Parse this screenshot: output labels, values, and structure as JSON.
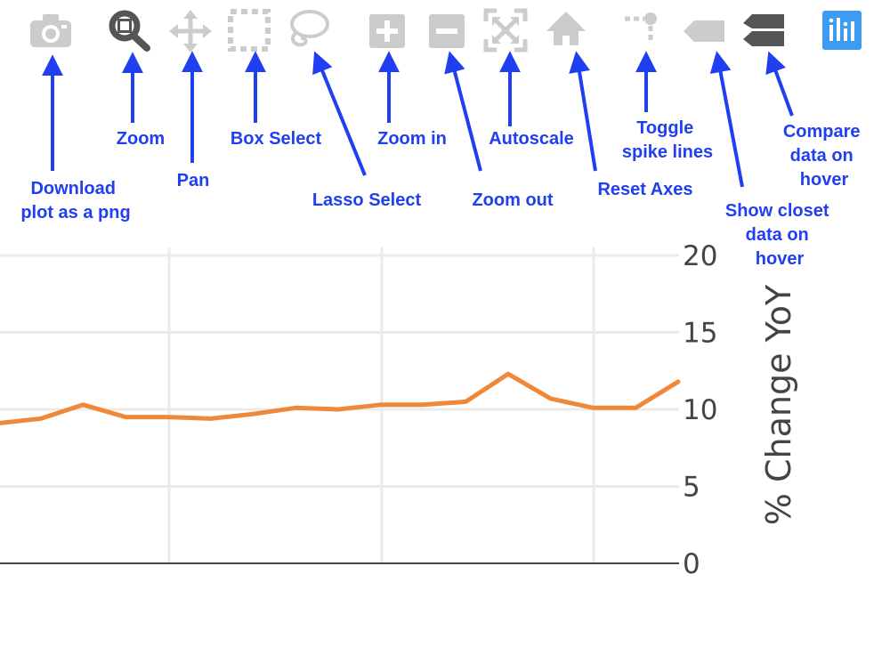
{
  "toolbar": {
    "buttons": [
      {
        "key": "download",
        "icon": "camera-icon",
        "label_lines": [
          "Download",
          "plot as a png"
        ]
      },
      {
        "key": "zoom",
        "icon": "magnifier-icon",
        "label_lines": [
          "Zoom"
        ]
      },
      {
        "key": "pan",
        "icon": "move-arrows-icon",
        "label_lines": [
          "Pan"
        ]
      },
      {
        "key": "box-select",
        "icon": "dashed-box-icon",
        "label_lines": [
          "Box Select"
        ]
      },
      {
        "key": "lasso-select",
        "icon": "lasso-icon",
        "label_lines": [
          "Lasso Select"
        ]
      },
      {
        "key": "zoom-in",
        "icon": "plus-box-icon",
        "label_lines": [
          "Zoom in"
        ]
      },
      {
        "key": "zoom-out",
        "icon": "minus-box-icon",
        "label_lines": [
          "Zoom out"
        ]
      },
      {
        "key": "autoscale",
        "icon": "autoscale-icon",
        "label_lines": [
          "Autoscale"
        ]
      },
      {
        "key": "reset-axes",
        "icon": "home-icon",
        "label_lines": [
          "Reset Axes"
        ]
      },
      {
        "key": "spike-lines",
        "icon": "spike-lines-icon",
        "label_lines": [
          "Toggle",
          "spike lines"
        ]
      },
      {
        "key": "hover-closest",
        "icon": "tag-icon",
        "label_lines": [
          "Show closet",
          "data on",
          "hover"
        ]
      },
      {
        "key": "hover-compare",
        "icon": "double-tag-icon",
        "label_lines": [
          "Compare",
          "data on",
          "hover"
        ]
      },
      {
        "key": "plotly-logo",
        "icon": "plotly-logo-icon",
        "label_lines": []
      }
    ]
  },
  "colors": {
    "annotation": "#1f3ff0",
    "icon_gray": "#cccccc",
    "icon_dark": "#555555",
    "series": "#f0883a",
    "grid": "#ebebeb",
    "logo_bg": "#3d9cf0"
  },
  "chart_data": {
    "type": "line",
    "ylabel": "% Change YoY",
    "ylim": [
      0,
      20
    ],
    "yticks": [
      0,
      5,
      10,
      15,
      20
    ],
    "grid": true,
    "series": [
      {
        "values": [
          9.1,
          9.4,
          10.3,
          9.5,
          9.5,
          9.4,
          9.7,
          10.1,
          10.0,
          10.3,
          10.3,
          10.5,
          12.3,
          10.7,
          10.1,
          10.1,
          11.8
        ]
      }
    ]
  }
}
